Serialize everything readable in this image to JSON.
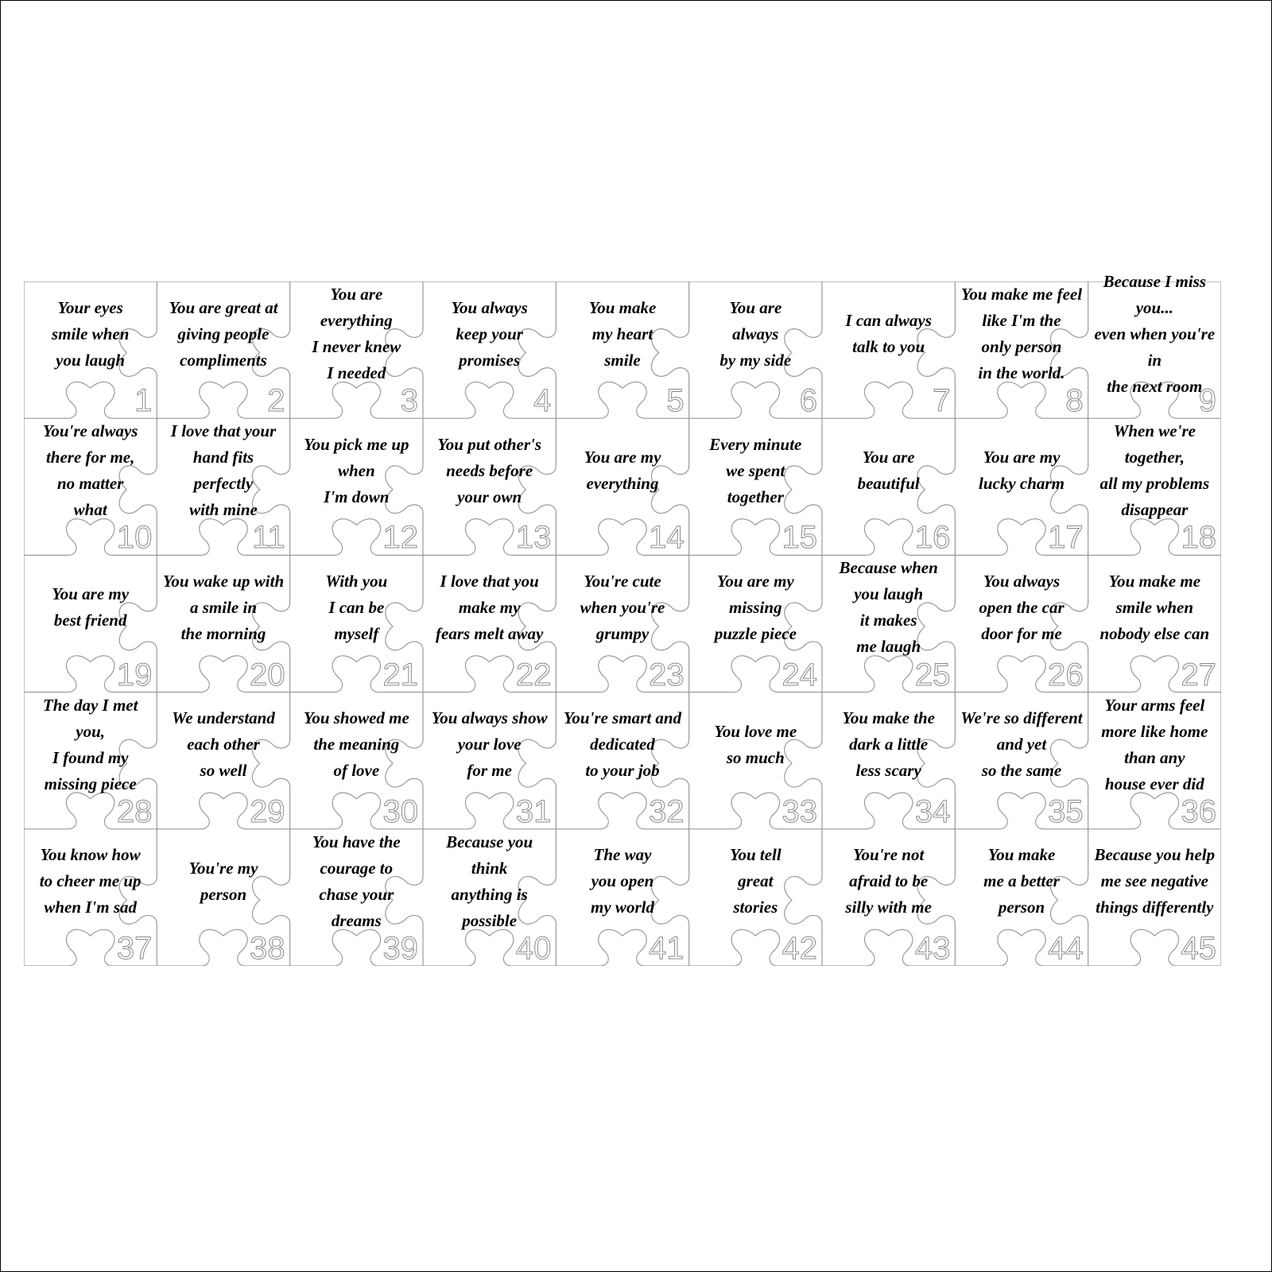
{
  "pieces": [
    {
      "number": "1",
      "text": "Your eyes\nsmile when\nyou laugh"
    },
    {
      "number": "2",
      "text": "You are great at\ngiving people\ncompliments"
    },
    {
      "number": "3",
      "text": "You are everything\nI never knew\nI needed"
    },
    {
      "number": "4",
      "text": "You always\nkeep your\npromises"
    },
    {
      "number": "5",
      "text": "You make\nmy heart\nsmile"
    },
    {
      "number": "6",
      "text": "You are\nalways\nby my side"
    },
    {
      "number": "7",
      "text": "I can always\ntalk to you"
    },
    {
      "number": "8",
      "text": "You make me feel\nlike I'm the\nonly person\nin the world."
    },
    {
      "number": "9",
      "text": "Because I miss you...\neven when you're in\nthe next room"
    },
    {
      "number": "10",
      "text": "You're always\nthere for me,\nno matter\nwhat"
    },
    {
      "number": "11",
      "text": "I love that your\nhand fits\nperfectly\nwith mine"
    },
    {
      "number": "12",
      "text": "You pick me up\nwhen\nI'm down"
    },
    {
      "number": "13",
      "text": "You put other's\nneeds before\nyour own"
    },
    {
      "number": "14",
      "text": "You are my\neverything"
    },
    {
      "number": "15",
      "text": "Every minute\nwe spent\ntogether"
    },
    {
      "number": "16",
      "text": "You are\nbeautiful"
    },
    {
      "number": "17",
      "text": "You are my\nlucky charm"
    },
    {
      "number": "18",
      "text": "When we're together,\nall my problems\ndisappear"
    },
    {
      "number": "19",
      "text": "You are my\nbest friend"
    },
    {
      "number": "20",
      "text": "You wake up with\na smile in\nthe morning"
    },
    {
      "number": "21",
      "text": "With you\nI can be\nmyself"
    },
    {
      "number": "22",
      "text": "I love that you\nmake my\nfears melt away"
    },
    {
      "number": "23",
      "text": "You're cute\nwhen you're\ngrumpy"
    },
    {
      "number": "24",
      "text": "You are my\nmissing\npuzzle piece"
    },
    {
      "number": "25",
      "text": "Because when\nyou laugh\nit makes\nme laugh"
    },
    {
      "number": "26",
      "text": "You always\nopen the car\ndoor for me"
    },
    {
      "number": "27",
      "text": "You make me\nsmile when\nnobody else can"
    },
    {
      "number": "28",
      "text": "The day I met you,\nI found my\nmissing piece"
    },
    {
      "number": "29",
      "text": "We understand\neach other\nso well"
    },
    {
      "number": "30",
      "text": "You showed me\nthe meaning\nof love"
    },
    {
      "number": "31",
      "text": "You always show\nyour love\nfor me"
    },
    {
      "number": "32",
      "text": "You're smart and\ndedicated\nto your job"
    },
    {
      "number": "33",
      "text": "You love me\nso much"
    },
    {
      "number": "34",
      "text": "You make the\ndark a little\nless scary"
    },
    {
      "number": "35",
      "text": "We're so different\nand yet\nso the same"
    },
    {
      "number": "36",
      "text": "Your arms feel\nmore like home\nthan any\nhouse ever did"
    },
    {
      "number": "37",
      "text": "You know how\nto cheer me up\nwhen I'm sad"
    },
    {
      "number": "38",
      "text": "You're my\nperson"
    },
    {
      "number": "39",
      "text": "You have the\ncourage to\nchase your\ndreams"
    },
    {
      "number": "40",
      "text": "Because you think\nanything is\npossible"
    },
    {
      "number": "41",
      "text": "The way\nyou open\nmy world"
    },
    {
      "number": "42",
      "text": "You tell\ngreat\nstories"
    },
    {
      "number": "43",
      "text": "You're not\nafraid to be\nsilly with me"
    },
    {
      "number": "44",
      "text": "You make\nme a better\nperson"
    },
    {
      "number": "45",
      "text": "Because you help\nme see negative\nthings differently"
    }
  ],
  "colors": {
    "outline": "#9a9a9a",
    "text": "#000000",
    "number_outline": "#8a8a8a"
  }
}
